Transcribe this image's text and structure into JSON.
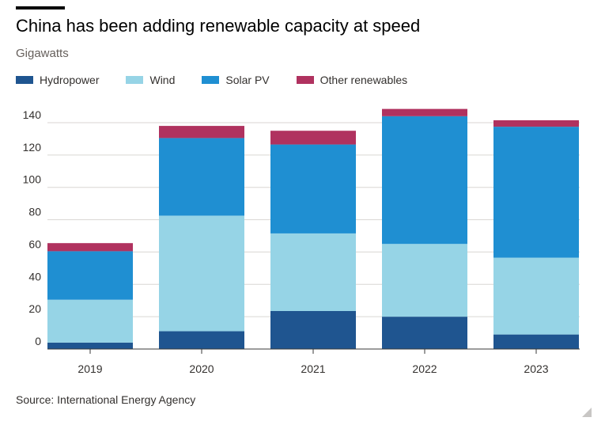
{
  "header": {
    "title": "China has been adding renewable capacity at speed",
    "subtitle": "Gigawatts"
  },
  "footer": {
    "source": "Source: International Energy Agency"
  },
  "chart_data": {
    "type": "bar",
    "stacked": true,
    "title": "China has been adding renewable capacity at speed",
    "subtitle": "Gigawatts",
    "xlabel": "",
    "ylabel": "",
    "categories": [
      "2019",
      "2020",
      "2021",
      "2022",
      "2023"
    ],
    "series": [
      {
        "name": "Hydropower",
        "color": "#1f5590",
        "values": [
          4,
          11,
          23.5,
          20,
          9
        ]
      },
      {
        "name": "Wind",
        "color": "#96d4e6",
        "values": [
          26.5,
          71.5,
          48,
          45,
          47.5
        ]
      },
      {
        "name": "Solar PV",
        "color": "#1f8fd2",
        "values": [
          30,
          48,
          55,
          79,
          81
        ]
      },
      {
        "name": "Other renewables",
        "color": "#b0325f",
        "values": [
          5,
          7.5,
          8.5,
          4.5,
          4
        ]
      }
    ],
    "ylim": [
      0,
      140
    ],
    "yticks": [
      0,
      20,
      40,
      60,
      80,
      100,
      120,
      140
    ],
    "grid": true,
    "legend_position": "top-left"
  }
}
